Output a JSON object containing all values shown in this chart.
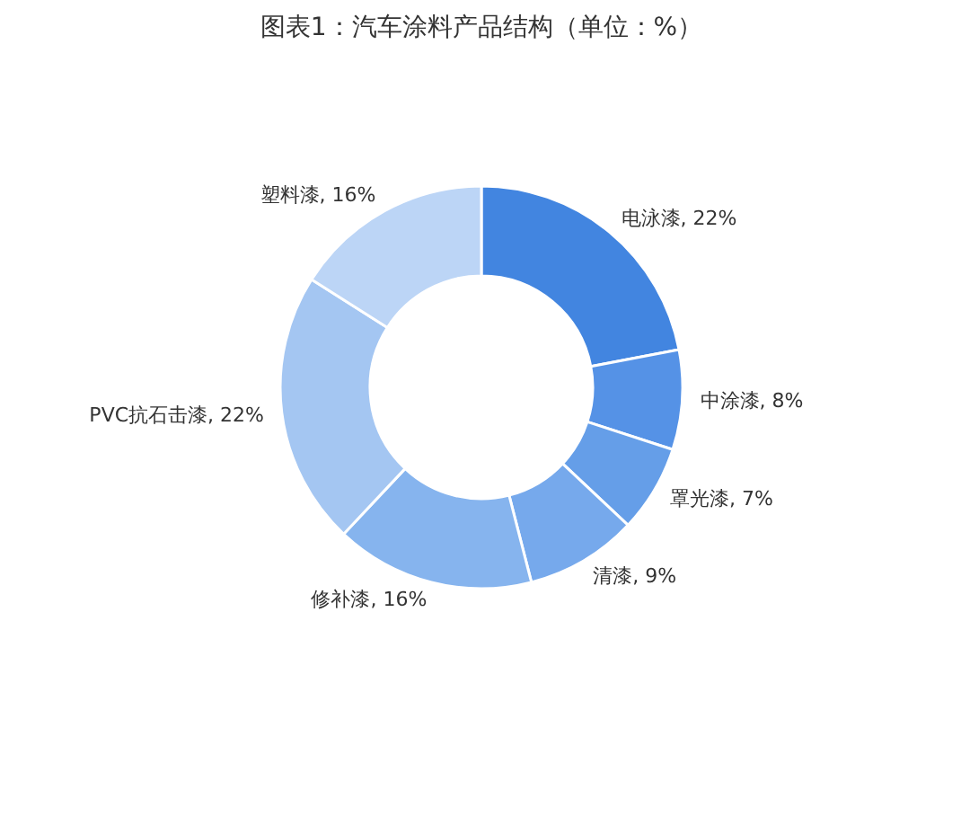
{
  "chart_data": {
    "type": "donut",
    "title": "图表1：汽车涂料产品结构（单位：%）",
    "categories": [
      "电泳漆",
      "中涂漆",
      "罩光漆",
      "清漆",
      "修补漆",
      "PVC抗石击漆",
      "塑料漆"
    ],
    "values": [
      22,
      8,
      7,
      9,
      16,
      22,
      16
    ],
    "value_labels": [
      "22%",
      "8%",
      "7%",
      "9%",
      "16%",
      "22%",
      "16%"
    ],
    "colors": [
      "#4285e0",
      "#5592e6",
      "#659ee8",
      "#76a9ec",
      "#86b4ee",
      "#a4c6f2",
      "#bcd5f6"
    ],
    "legend": false
  }
}
